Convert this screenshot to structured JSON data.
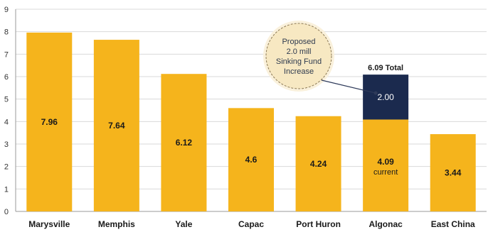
{
  "chart_data": {
    "type": "bar",
    "title": "",
    "xlabel": "",
    "ylabel": "",
    "ylim": [
      0,
      9
    ],
    "yticks": [
      0,
      1,
      2,
      3,
      4,
      5,
      6,
      7,
      8,
      9
    ],
    "grid": true,
    "categories": [
      "Marysville",
      "Memphis",
      "Yale",
      "Capac",
      "Port Huron",
      "Algonac",
      "East China"
    ],
    "series": [
      {
        "values": [
          7.96,
          7.64,
          6.12,
          4.6,
          4.24,
          4.09,
          3.44
        ],
        "color": "#f5b41c"
      },
      {
        "values": [
          null,
          null,
          null,
          null,
          null,
          2.0,
          null
        ],
        "color": "#1b2a4e"
      }
    ],
    "labels": [
      "7.96",
      "7.64",
      "6.12",
      "4.6",
      "4.24",
      "4.09",
      "3.44"
    ],
    "sublabel": {
      "category": "Algonac",
      "text": "current"
    },
    "stack_label": "2.00",
    "total_label": "6.09 Total",
    "annotation": {
      "lines": [
        "Proposed",
        "2.0 mill",
        "Sinking Fund",
        "Increase"
      ],
      "points_to": "Algonac"
    }
  }
}
